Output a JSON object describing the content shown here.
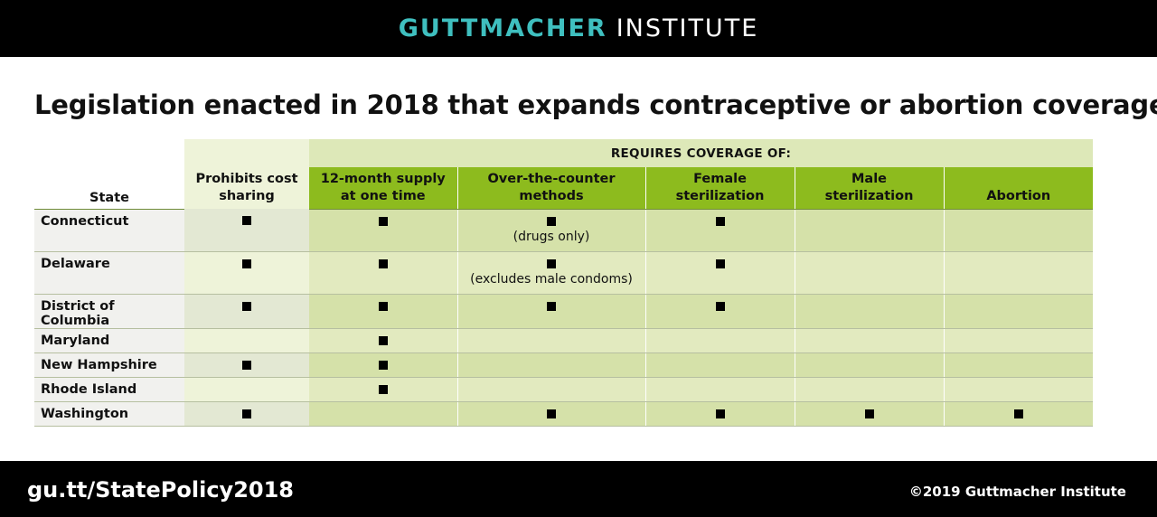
{
  "header": {
    "brand_bold": "GUTTMACHER",
    "brand_light": "INSTITUTE"
  },
  "title": "Legislation enacted in 2018 that expands contraceptive or abortion coverage",
  "table": {
    "col_state": "State",
    "col_cost": [
      "Prohibits cost",
      "sharing"
    ],
    "group_label": "REQUIRES COVERAGE OF:",
    "subcols": [
      [
        "12-month supply",
        "at one time"
      ],
      [
        "Over-the-counter",
        "methods"
      ],
      [
        "Female",
        "sterilization"
      ],
      [
        "Male",
        "sterilization"
      ],
      [
        "Abortion"
      ]
    ],
    "rows": [
      {
        "state": "Connecticut",
        "cells": [
          true,
          true,
          true,
          true,
          false,
          false
        ],
        "notes": [
          "",
          "",
          "(drugs only)",
          "",
          "",
          ""
        ]
      },
      {
        "state": "Delaware",
        "cells": [
          true,
          true,
          true,
          true,
          false,
          false
        ],
        "notes": [
          "",
          "",
          "(excludes male condoms)",
          "",
          "",
          ""
        ]
      },
      {
        "state": "District of Columbia",
        "cells": [
          true,
          true,
          true,
          true,
          false,
          false
        ],
        "notes": [
          "",
          "",
          "",
          "",
          "",
          ""
        ]
      },
      {
        "state": "Maryland",
        "cells": [
          false,
          true,
          false,
          false,
          false,
          false
        ],
        "notes": [
          "",
          "",
          "",
          "",
          "",
          ""
        ]
      },
      {
        "state": "New Hampshire",
        "cells": [
          true,
          true,
          false,
          false,
          false,
          false
        ],
        "notes": [
          "",
          "",
          "",
          "",
          "",
          ""
        ]
      },
      {
        "state": "Rhode Island",
        "cells": [
          false,
          true,
          false,
          false,
          false,
          false
        ],
        "notes": [
          "",
          "",
          "",
          "",
          "",
          ""
        ]
      },
      {
        "state": "Washington",
        "cells": [
          true,
          false,
          true,
          true,
          true,
          true
        ],
        "notes": [
          "",
          "",
          "",
          "",
          "",
          ""
        ]
      }
    ]
  },
  "footer": {
    "url": "gu.tt/StatePolicy2018",
    "copyright": "©2019 Guttmacher Institute"
  },
  "colors": {
    "brand_teal": "#3fbfbf",
    "header_green": "#8dbb1e",
    "bar_black": "#000000"
  }
}
